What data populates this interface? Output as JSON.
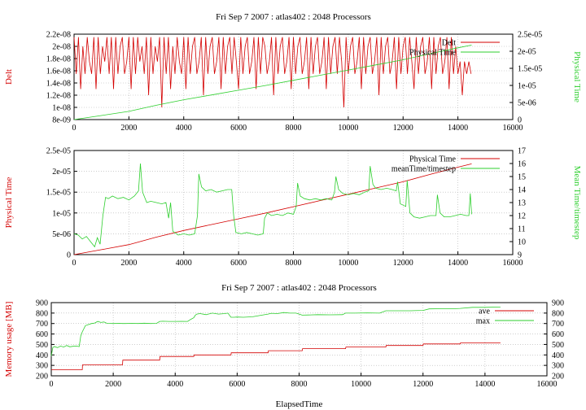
{
  "colors": {
    "red": "#d40000",
    "green": "#2dcf2d"
  },
  "chart_data": [
    {
      "type": "line",
      "title": "Fri Sep 7 2007 : atlas402 : 2048 Processors",
      "ylabel": "Delt",
      "y2label": "Physical Time",
      "xlim": [
        0,
        16000
      ],
      "ylim": [
        8e-09,
        2.2e-08
      ],
      "y2lim": [
        0,
        2.5e-05
      ],
      "xticks": [
        "0",
        "2000",
        "4000",
        "6000",
        "8000",
        "10000",
        "12000",
        "14000",
        "16000"
      ],
      "yticks": [
        "8e-09",
        "1e-08",
        "1.2e-08",
        "1.4e-08",
        "1.6e-08",
        "1.8e-08",
        "2e-08",
        "2.2e-08"
      ],
      "y2ticks": [
        "0",
        "5e-06",
        "1e-05",
        "1.5e-05",
        "2e-05",
        "2.5e-05"
      ],
      "grid": true,
      "legend_position": "top-right",
      "series": [
        {
          "name": "Delt",
          "color": "#d40000",
          "axis": "y",
          "x": [
            0,
            80,
            160,
            240,
            320,
            400,
            480,
            560,
            640,
            720,
            800,
            880,
            960,
            1040,
            1120,
            1200,
            1280,
            1360,
            1440,
            1520,
            1600,
            1680,
            1760,
            1840,
            1920,
            2000,
            2080,
            2160,
            2240,
            2320,
            2400,
            2480,
            2560,
            2640,
            2720,
            2800,
            2880,
            2960,
            3040,
            3120,
            3200,
            3280,
            3360,
            3440,
            3520,
            3600,
            3680,
            3760,
            3840,
            3920,
            4000,
            4080,
            4160,
            4240,
            4320,
            4400,
            4480,
            4560,
            4640,
            4720,
            4800,
            4880,
            4960,
            5040,
            5120,
            5200,
            5280,
            5360,
            5440,
            5520,
            5600,
            5680,
            5760,
            5840,
            5920,
            6000,
            6080,
            6160,
            6240,
            6320,
            6400,
            6480,
            6560,
            6640,
            6720,
            6800,
            6880,
            6960,
            7040,
            7120,
            7200,
            7280,
            7360,
            7440,
            7520,
            7600,
            7680,
            7760,
            7840,
            7920,
            8000,
            8080,
            8160,
            8240,
            8320,
            8400,
            8480,
            8560,
            8640,
            8720,
            8800,
            8880,
            8960,
            9040,
            9120,
            9200,
            9280,
            9360,
            9440,
            9520,
            9600,
            9680,
            9760,
            9840,
            9920,
            10000,
            10080,
            10160,
            10240,
            10320,
            10400,
            10480,
            10560,
            10640,
            10720,
            10800,
            10880,
            10960,
            11040,
            11120,
            11200,
            11280,
            11360,
            11440,
            11520,
            11600,
            11680,
            11760,
            11840,
            11920,
            12000,
            12080,
            12160,
            12240,
            12320,
            12400,
            12480,
            12560,
            12640,
            12720,
            12800,
            12880,
            12960,
            13040,
            13120,
            13200,
            13280,
            13360,
            13440,
            13520,
            13600,
            13680,
            13760,
            13840,
            13920,
            14000,
            14080,
            14160,
            14240,
            14320,
            14400,
            14480
          ],
          "values": [
            2.15e-08,
            1.55e-08,
            2.15e-08,
            1.3e-08,
            2e-08,
            1.55e-08,
            2.15e-08,
            1.75e-08,
            1.55e-08,
            2.15e-08,
            1.3e-08,
            2.15e-08,
            1.55e-08,
            2e-08,
            1.75e-08,
            2.15e-08,
            1.55e-08,
            2.15e-08,
            1.3e-08,
            2.15e-08,
            1.55e-08,
            2e-08,
            2.15e-08,
            1.55e-08,
            1.75e-08,
            2.15e-08,
            1.3e-08,
            2.15e-08,
            1.55e-08,
            2.15e-08,
            1.75e-08,
            2e-08,
            1.55e-08,
            2.15e-08,
            1.2e-08,
            2.15e-08,
            1.55e-08,
            2e-08,
            1.75e-08,
            2.15e-08,
            1e-08,
            2.15e-08,
            1.55e-08,
            2.15e-08,
            1.3e-08,
            2e-08,
            1.55e-08,
            2.15e-08,
            1.75e-08,
            1.55e-08,
            2.15e-08,
            1.3e-08,
            2.15e-08,
            1.55e-08,
            2e-08,
            2.15e-08,
            1.55e-08,
            1.75e-08,
            2.15e-08,
            1.2e-08,
            2.15e-08,
            1.55e-08,
            2e-08,
            2.15e-08,
            1.55e-08,
            1.75e-08,
            2.15e-08,
            1.3e-08,
            2.15e-08,
            1.55e-08,
            2e-08,
            2.15e-08,
            1.55e-08,
            2.15e-08,
            1.75e-08,
            1.3e-08,
            2.15e-08,
            1.55e-08,
            2e-08,
            2.15e-08,
            1.55e-08,
            1.75e-08,
            2.15e-08,
            1.3e-08,
            2.15e-08,
            1.55e-08,
            2.15e-08,
            2e-08,
            1.55e-08,
            1.75e-08,
            2.15e-08,
            1.2e-08,
            2.15e-08,
            1.55e-08,
            2e-08,
            2.15e-08,
            1.55e-08,
            1.75e-08,
            2.15e-08,
            1.3e-08,
            2.15e-08,
            1.55e-08,
            2e-08,
            2.15e-08,
            1.55e-08,
            1.75e-08,
            2.15e-08,
            1.3e-08,
            2.15e-08,
            1.55e-08,
            2e-08,
            2.15e-08,
            1.55e-08,
            1.75e-08,
            2.15e-08,
            1.3e-08,
            2.15e-08,
            1.55e-08,
            2e-08,
            2.15e-08,
            1.55e-08,
            2.15e-08,
            1.75e-08,
            1e-08,
            2.15e-08,
            1.55e-08,
            2e-08,
            2.15e-08,
            1.55e-08,
            1.75e-08,
            2.15e-08,
            1.3e-08,
            2.15e-08,
            1.55e-08,
            2e-08,
            2.15e-08,
            1.55e-08,
            1.75e-08,
            2.15e-08,
            1.2e-08,
            2.15e-08,
            1.55e-08,
            2e-08,
            2.15e-08,
            1.55e-08,
            1.75e-08,
            2.15e-08,
            1.3e-08,
            2.15e-08,
            1.55e-08,
            2e-08,
            2.15e-08,
            1.55e-08,
            2.15e-08,
            1.75e-08,
            1.3e-08,
            2.15e-08,
            1.55e-08,
            2e-08,
            2.15e-08,
            1.55e-08,
            1.75e-08,
            2.15e-08,
            1.3e-08,
            2.15e-08,
            1.55e-08,
            2e-08,
            2.15e-08,
            1.55e-08,
            1.75e-08,
            2.15e-08,
            1.3e-08,
            2.15e-08,
            1.55e-08,
            2e-08,
            1.55e-08,
            1.75e-08,
            1.2e-08,
            1.75e-08,
            1.55e-08,
            1.75e-08,
            1.55e-08
          ]
        },
        {
          "name": "Physical Time",
          "color": "#2dcf2d",
          "axis": "y2",
          "x": [
            0,
            1000,
            2000,
            3000,
            4000,
            5000,
            6000,
            7000,
            8000,
            9000,
            10000,
            11000,
            12000,
            13000,
            14000,
            14500
          ],
          "values": [
            0,
            1.2e-06,
            2.4e-06,
            4.2e-06,
            5.8e-06,
            7.2e-06,
            8.6e-06,
            1e-05,
            1.15e-05,
            1.3e-05,
            1.45e-05,
            1.6e-05,
            1.75e-05,
            1.93e-05,
            2.1e-05,
            2.18e-05
          ]
        }
      ]
    },
    {
      "type": "line",
      "title": "",
      "ylabel": "Physical Time",
      "y2label": "Mean Time/timestep",
      "xlim": [
        0,
        16000
      ],
      "ylim": [
        0,
        2.5e-05
      ],
      "y2lim": [
        9,
        17
      ],
      "xticks": [
        "0",
        "2000",
        "4000",
        "6000",
        "8000",
        "10000",
        "12000",
        "14000",
        "16000"
      ],
      "yticks": [
        "0",
        "5e-06",
        "1e-05",
        "1.5e-05",
        "2e-05",
        "2.5e-05"
      ],
      "y2ticks": [
        "9",
        "10",
        "11",
        "12",
        "13",
        "14",
        "15",
        "16",
        "17"
      ],
      "grid": true,
      "legend_position": "top-right",
      "series": [
        {
          "name": "Physical Time",
          "color": "#d40000",
          "axis": "y",
          "x": [
            0,
            1000,
            2000,
            3000,
            4000,
            5000,
            6000,
            7000,
            8000,
            9000,
            10000,
            11000,
            12000,
            13000,
            14000,
            14500
          ],
          "values": [
            0,
            1.2e-06,
            2.4e-06,
            4.2e-06,
            5.8e-06,
            7.2e-06,
            8.6e-06,
            1e-05,
            1.15e-05,
            1.3e-05,
            1.45e-05,
            1.6e-05,
            1.75e-05,
            1.93e-05,
            2.1e-05,
            2.18e-05
          ]
        },
        {
          "name": "meanTime/timestep",
          "color": "#2dcf2d",
          "axis": "y2",
          "x": [
            0,
            150,
            300,
            450,
            600,
            750,
            850,
            950,
            1050,
            1150,
            1250,
            1400,
            1600,
            1800,
            2000,
            2200,
            2350,
            2420,
            2500,
            2650,
            2800,
            3000,
            3200,
            3350,
            3450,
            3520,
            3600,
            3800,
            4000,
            4200,
            4400,
            4500,
            4550,
            4650,
            4800,
            5000,
            5200,
            5400,
            5600,
            5750,
            5820,
            5900,
            6100,
            6300,
            6500,
            6700,
            6900,
            6950,
            7050,
            7200,
            7400,
            7600,
            7800,
            8000,
            8100,
            8150,
            8250,
            8400,
            8600,
            8800,
            9000,
            9200,
            9400,
            9500,
            9550,
            9650,
            9800,
            10000,
            10200,
            10400,
            10600,
            10750,
            10800,
            10900,
            11000,
            11200,
            11400,
            11600,
            11750,
            11800,
            11900,
            12000,
            12100,
            12150,
            12250,
            12400,
            12600,
            12800,
            13000,
            13200,
            13250,
            13350,
            13500,
            13700,
            13900,
            14100,
            14300,
            14400,
            14450,
            14500
          ],
          "values": [
            10.6,
            10.5,
            10.2,
            10.4,
            10.0,
            9.6,
            10.3,
            9.8,
            12.0,
            13.4,
            13.3,
            13.5,
            13.3,
            13.4,
            13.2,
            13.5,
            13.9,
            16.0,
            13.8,
            13.0,
            13.1,
            13.0,
            12.9,
            13.0,
            11.8,
            13.0,
            10.8,
            10.5,
            10.6,
            10.5,
            10.6,
            12.0,
            15.2,
            14.2,
            13.9,
            14.0,
            13.8,
            13.9,
            14.0,
            14.0,
            12.0,
            10.7,
            10.6,
            10.7,
            10.6,
            10.5,
            10.6,
            11.8,
            12.2,
            12.0,
            12.1,
            12.0,
            12.2,
            12.1,
            12.7,
            14.5,
            13.5,
            13.3,
            13.2,
            13.3,
            13.2,
            13.3,
            13.2,
            13.8,
            15.0,
            14.0,
            13.7,
            13.6,
            13.7,
            13.6,
            13.8,
            13.9,
            15.8,
            14.4,
            14.1,
            14.0,
            14.1,
            14.0,
            13.9,
            14.6,
            12.9,
            12.8,
            12.7,
            14.7,
            12.2,
            11.9,
            11.8,
            11.9,
            12.0,
            12.0,
            13.6,
            12.2,
            11.9,
            11.9,
            12.0,
            12.1,
            12.0,
            12.0,
            13.7,
            12.1
          ]
        }
      ]
    },
    {
      "type": "line",
      "title": "Fri Sep 7 2007 : atlas402 : 2048 Processors",
      "xlabel": "ElapsedTime",
      "ylabel": "Memory usage [MB]",
      "xlim": [
        0,
        16000
      ],
      "ylim": [
        200,
        900
      ],
      "y2lim": [
        200,
        900
      ],
      "xticks": [
        "0",
        "2000",
        "4000",
        "6000",
        "8000",
        "10000",
        "12000",
        "14000",
        "16000"
      ],
      "yticks": [
        "200",
        "300",
        "400",
        "500",
        "600",
        "700",
        "800",
        "900"
      ],
      "y2ticks": [
        "200",
        "300",
        "400",
        "500",
        "600",
        "700",
        "800",
        "900"
      ],
      "grid": true,
      "legend_position": "top-right",
      "series": [
        {
          "name": "ave",
          "color": "#d40000",
          "axis": "y",
          "x": [
            0,
            1000,
            1010,
            2300,
            2310,
            3500,
            3510,
            4600,
            4610,
            5800,
            5810,
            7000,
            7010,
            8100,
            8110,
            9500,
            9510,
            10800,
            10810,
            12000,
            12010,
            13200,
            13210,
            14500
          ],
          "values": [
            258,
            258,
            305,
            305,
            350,
            350,
            385,
            385,
            400,
            400,
            420,
            420,
            440,
            440,
            460,
            460,
            475,
            475,
            490,
            490,
            505,
            505,
            515,
            515
          ]
        },
        {
          "name": "max",
          "color": "#2dcf2d",
          "axis": "y",
          "x": [
            0,
            50,
            100,
            200,
            300,
            400,
            500,
            600,
            700,
            800,
            900,
            950,
            1000,
            1100,
            1200,
            1300,
            1400,
            1500,
            1600,
            1700,
            1800,
            2000,
            2200,
            2300,
            2400,
            2600,
            2800,
            3000,
            3200,
            3400,
            3500,
            3600,
            3800,
            4000,
            4200,
            4400,
            4500,
            4600,
            4650,
            4700,
            4800,
            5000,
            5200,
            5400,
            5600,
            5700,
            5800,
            5900,
            6000,
            6200,
            6500,
            6800,
            7000,
            7100,
            7300,
            7500,
            7700,
            7900,
            8000,
            8100,
            8300,
            8600,
            9000,
            9400,
            9500,
            9800,
            10200,
            10600,
            10800,
            11200,
            11600,
            12000,
            12200,
            12600,
            13000,
            13200,
            13600,
            14000,
            14500
          ],
          "values": [
            390,
            470,
            480,
            470,
            485,
            475,
            490,
            478,
            482,
            485,
            480,
            580,
            620,
            680,
            690,
            700,
            705,
            720,
            710,
            715,
            702,
            700,
            702,
            700,
            700,
            702,
            700,
            703,
            700,
            702,
            720,
            722,
            720,
            720,
            721,
            720,
            740,
            755,
            780,
            790,
            795,
            785,
            800,
            790,
            795,
            800,
            760,
            760,
            762,
            760,
            765,
            780,
            790,
            798,
            795,
            805,
            800,
            800,
            790,
            780,
            782,
            785,
            783,
            785,
            800,
            800,
            802,
            800,
            822,
            822,
            822,
            825,
            840,
            842,
            842,
            845,
            855,
            855,
            858
          ]
        }
      ]
    }
  ]
}
